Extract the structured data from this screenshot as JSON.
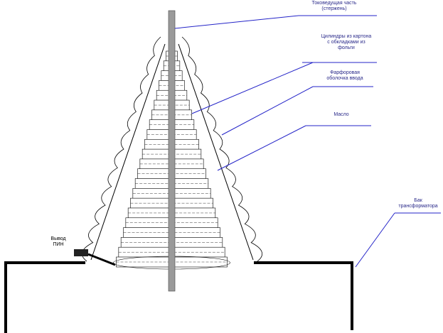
{
  "labels": [
    {
      "lines": [
        "Токоведущая часть",
        "(стержень)"
      ]
    },
    {
      "lines": [
        "Цилиндры из картона",
        "с обкладками из",
        "фольги"
      ]
    },
    {
      "lines": [
        "Фарфоровая",
        "оболочка ввода"
      ]
    },
    {
      "lines": [
        "Масло"
      ]
    },
    {
      "lines": [
        "Бак",
        "трансформатора"
      ]
    },
    {
      "lines": [
        "Вывод",
        "ПИН"
      ]
    }
  ]
}
